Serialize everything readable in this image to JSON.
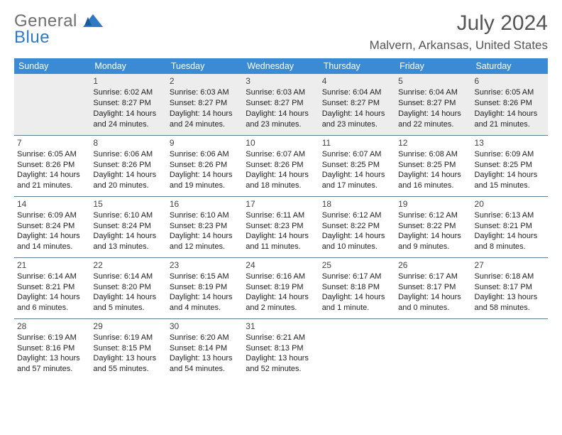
{
  "brand": {
    "word1": "General",
    "word2": "Blue"
  },
  "title": "July 2024",
  "location": "Malvern, Arkansas, United States",
  "header_bg": "#3b8bd4",
  "row_border": "#5c7f94",
  "weekdays": [
    "Sunday",
    "Monday",
    "Tuesday",
    "Wednesday",
    "Thursday",
    "Friday",
    "Saturday"
  ],
  "weeks": [
    [
      {
        "num": "",
        "lines": []
      },
      {
        "num": "1",
        "lines": [
          "Sunrise: 6:02 AM",
          "Sunset: 8:27 PM",
          "Daylight: 14 hours and 24 minutes."
        ]
      },
      {
        "num": "2",
        "lines": [
          "Sunrise: 6:03 AM",
          "Sunset: 8:27 PM",
          "Daylight: 14 hours and 24 minutes."
        ]
      },
      {
        "num": "3",
        "lines": [
          "Sunrise: 6:03 AM",
          "Sunset: 8:27 PM",
          "Daylight: 14 hours and 23 minutes."
        ]
      },
      {
        "num": "4",
        "lines": [
          "Sunrise: 6:04 AM",
          "Sunset: 8:27 PM",
          "Daylight: 14 hours and 23 minutes."
        ]
      },
      {
        "num": "5",
        "lines": [
          "Sunrise: 6:04 AM",
          "Sunset: 8:27 PM",
          "Daylight: 14 hours and 22 minutes."
        ]
      },
      {
        "num": "6",
        "lines": [
          "Sunrise: 6:05 AM",
          "Sunset: 8:26 PM",
          "Daylight: 14 hours and 21 minutes."
        ]
      }
    ],
    [
      {
        "num": "7",
        "lines": [
          "Sunrise: 6:05 AM",
          "Sunset: 8:26 PM",
          "Daylight: 14 hours and 21 minutes."
        ]
      },
      {
        "num": "8",
        "lines": [
          "Sunrise: 6:06 AM",
          "Sunset: 8:26 PM",
          "Daylight: 14 hours and 20 minutes."
        ]
      },
      {
        "num": "9",
        "lines": [
          "Sunrise: 6:06 AM",
          "Sunset: 8:26 PM",
          "Daylight: 14 hours and 19 minutes."
        ]
      },
      {
        "num": "10",
        "lines": [
          "Sunrise: 6:07 AM",
          "Sunset: 8:26 PM",
          "Daylight: 14 hours and 18 minutes."
        ]
      },
      {
        "num": "11",
        "lines": [
          "Sunrise: 6:07 AM",
          "Sunset: 8:25 PM",
          "Daylight: 14 hours and 17 minutes."
        ]
      },
      {
        "num": "12",
        "lines": [
          "Sunrise: 6:08 AM",
          "Sunset: 8:25 PM",
          "Daylight: 14 hours and 16 minutes."
        ]
      },
      {
        "num": "13",
        "lines": [
          "Sunrise: 6:09 AM",
          "Sunset: 8:25 PM",
          "Daylight: 14 hours and 15 minutes."
        ]
      }
    ],
    [
      {
        "num": "14",
        "lines": [
          "Sunrise: 6:09 AM",
          "Sunset: 8:24 PM",
          "Daylight: 14 hours and 14 minutes."
        ]
      },
      {
        "num": "15",
        "lines": [
          "Sunrise: 6:10 AM",
          "Sunset: 8:24 PM",
          "Daylight: 14 hours and 13 minutes."
        ]
      },
      {
        "num": "16",
        "lines": [
          "Sunrise: 6:10 AM",
          "Sunset: 8:23 PM",
          "Daylight: 14 hours and 12 minutes."
        ]
      },
      {
        "num": "17",
        "lines": [
          "Sunrise: 6:11 AM",
          "Sunset: 8:23 PM",
          "Daylight: 14 hours and 11 minutes."
        ]
      },
      {
        "num": "18",
        "lines": [
          "Sunrise: 6:12 AM",
          "Sunset: 8:22 PM",
          "Daylight: 14 hours and 10 minutes."
        ]
      },
      {
        "num": "19",
        "lines": [
          "Sunrise: 6:12 AM",
          "Sunset: 8:22 PM",
          "Daylight: 14 hours and 9 minutes."
        ]
      },
      {
        "num": "20",
        "lines": [
          "Sunrise: 6:13 AM",
          "Sunset: 8:21 PM",
          "Daylight: 14 hours and 8 minutes."
        ]
      }
    ],
    [
      {
        "num": "21",
        "lines": [
          "Sunrise: 6:14 AM",
          "Sunset: 8:21 PM",
          "Daylight: 14 hours and 6 minutes."
        ]
      },
      {
        "num": "22",
        "lines": [
          "Sunrise: 6:14 AM",
          "Sunset: 8:20 PM",
          "Daylight: 14 hours and 5 minutes."
        ]
      },
      {
        "num": "23",
        "lines": [
          "Sunrise: 6:15 AM",
          "Sunset: 8:19 PM",
          "Daylight: 14 hours and 4 minutes."
        ]
      },
      {
        "num": "24",
        "lines": [
          "Sunrise: 6:16 AM",
          "Sunset: 8:19 PM",
          "Daylight: 14 hours and 2 minutes."
        ]
      },
      {
        "num": "25",
        "lines": [
          "Sunrise: 6:17 AM",
          "Sunset: 8:18 PM",
          "Daylight: 14 hours and 1 minute."
        ]
      },
      {
        "num": "26",
        "lines": [
          "Sunrise: 6:17 AM",
          "Sunset: 8:17 PM",
          "Daylight: 14 hours and 0 minutes."
        ]
      },
      {
        "num": "27",
        "lines": [
          "Sunrise: 6:18 AM",
          "Sunset: 8:17 PM",
          "Daylight: 13 hours and 58 minutes."
        ]
      }
    ],
    [
      {
        "num": "28",
        "lines": [
          "Sunrise: 6:19 AM",
          "Sunset: 8:16 PM",
          "Daylight: 13 hours and 57 minutes."
        ]
      },
      {
        "num": "29",
        "lines": [
          "Sunrise: 6:19 AM",
          "Sunset: 8:15 PM",
          "Daylight: 13 hours and 55 minutes."
        ]
      },
      {
        "num": "30",
        "lines": [
          "Sunrise: 6:20 AM",
          "Sunset: 8:14 PM",
          "Daylight: 13 hours and 54 minutes."
        ]
      },
      {
        "num": "31",
        "lines": [
          "Sunrise: 6:21 AM",
          "Sunset: 8:13 PM",
          "Daylight: 13 hours and 52 minutes."
        ]
      },
      {
        "num": "",
        "lines": []
      },
      {
        "num": "",
        "lines": []
      },
      {
        "num": "",
        "lines": []
      }
    ]
  ]
}
